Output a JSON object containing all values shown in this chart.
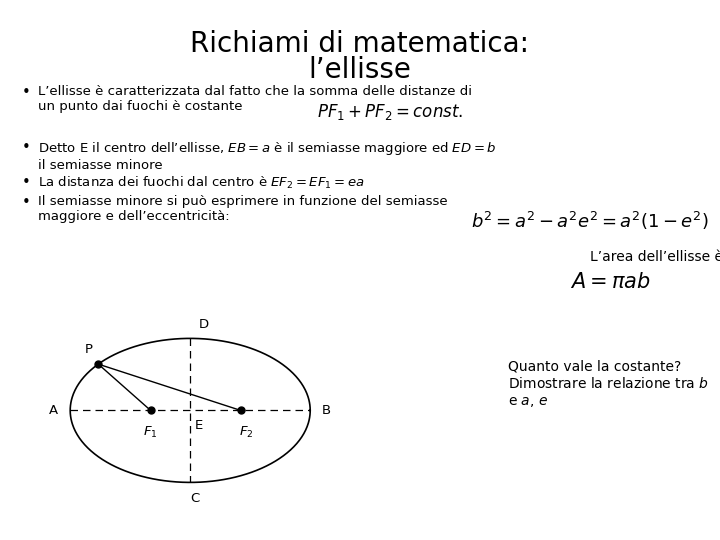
{
  "title_line1": "Richiami di matematica:",
  "title_line2": "l’ellisse",
  "bullet1": "L’ellisse è caratterizzata dal fatto che la somma delle distanze di\nun punto dai fuochi è costante",
  "formula1": "$PF_1 + PF_2 = const.$",
  "bullet2": "Detto E il centro dell’ellisse, $EB=a$ è il semiasse maggiore ed $ED=b$\nil semiasse minore",
  "bullet3": "La distanza dei fuochi dal centro è $EF_2=EF_1=ea$",
  "bullet4": "Il semiasse minore si può esprimere in funzione del semiasse\nmaggiore e dell’eccentricità:",
  "formula2": "$b^2 = a^2 - a^2e^2 = a^2\\left(1-e^2\\right)$",
  "area_label": "L’area dell’ellisse è",
  "formula3": "$A = \\pi ab$",
  "question": "Quanto vale la costante?\nDimostrare la relazione tra $b$\ne $a$, $e$",
  "bg_color": "#ffffff",
  "text_color": "#000000",
  "title_fontsize": 20,
  "body_fontsize": 9.5,
  "formula_fontsize": 12
}
